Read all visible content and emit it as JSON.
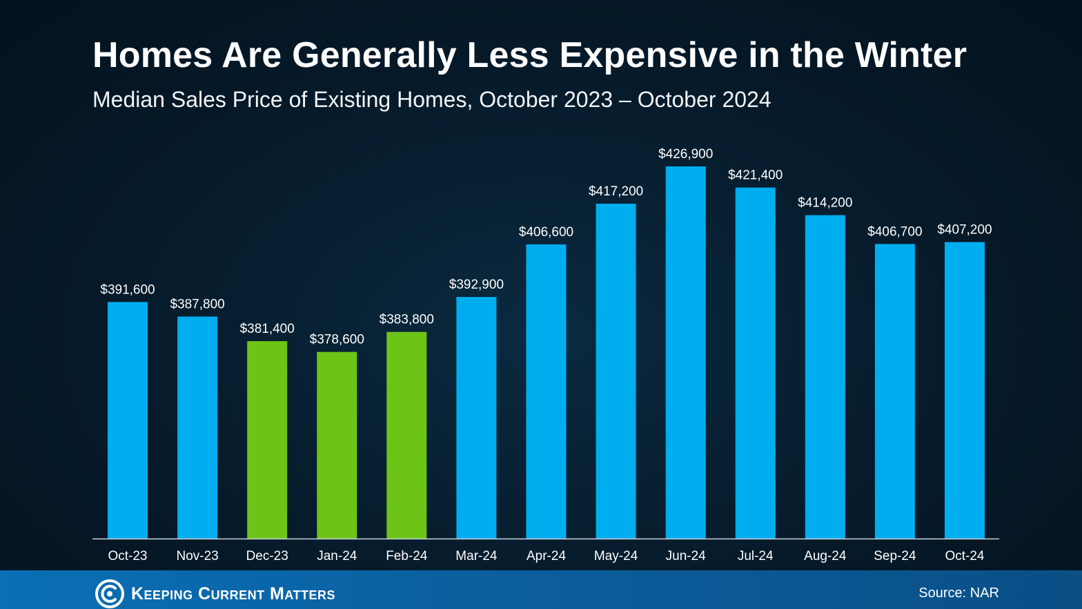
{
  "header": {
    "title": "Homes Are Generally Less Expensive in the Winter",
    "subtitle": "Median Sales Price of Existing Homes, October 2023 – October 2024"
  },
  "footer": {
    "brand": "Keeping Current Matters",
    "source": "Source: NAR"
  },
  "colors": {
    "default_bar": "#00AEEF",
    "winter_bar": "#6CC417",
    "baseline": "#c8d3dc",
    "label_text": "#ffffff"
  },
  "chart_data": {
    "type": "bar",
    "title": "Homes Are Generally Less Expensive in the Winter",
    "subtitle": "Median Sales Price of Existing Homes, October 2023 – October 2024",
    "xlabel": "",
    "ylabel": "",
    "categories": [
      "Oct-23",
      "Nov-23",
      "Dec-23",
      "Jan-24",
      "Feb-24",
      "Mar-24",
      "Apr-24",
      "May-24",
      "Jun-24",
      "Jul-24",
      "Aug-24",
      "Sep-24",
      "Oct-24"
    ],
    "values": [
      391600,
      387800,
      381400,
      378600,
      383800,
      392900,
      406600,
      417200,
      426900,
      421400,
      414200,
      406700,
      407200
    ],
    "value_labels": [
      "$391,600",
      "$387,800",
      "$381,400",
      "$378,600",
      "$383,800",
      "$392,900",
      "$406,600",
      "$417,200",
      "$426,900",
      "$421,400",
      "$414,200",
      "$406,700",
      "$407,200"
    ],
    "highlighted_categories": [
      "Dec-23",
      "Jan-24",
      "Feb-24"
    ],
    "ylim": [
      330000,
      434000
    ],
    "grid": false,
    "legend": "none"
  }
}
